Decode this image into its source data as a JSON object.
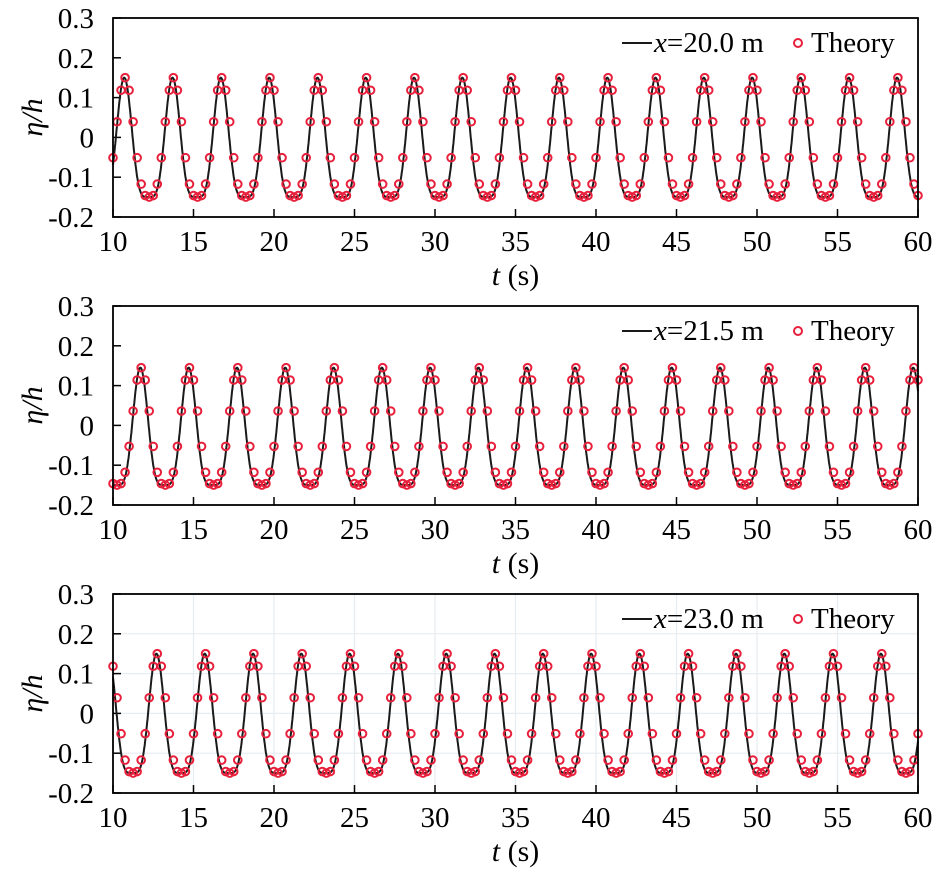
{
  "chart_data": [
    {
      "type": "line",
      "xlabel_italic": "t",
      "xlabel_unit": " (s)",
      "ylabel": "η/h",
      "xlim": [
        10,
        60
      ],
      "ylim": [
        -0.2,
        0.3
      ],
      "xticks": [
        10,
        15,
        20,
        25,
        30,
        35,
        40,
        45,
        50,
        55,
        60
      ],
      "yticks": [
        -0.2,
        -0.1,
        0,
        0.1,
        0.2,
        0.3
      ],
      "ytick_labels": [
        "-0.2",
        "-0.1",
        "0",
        "0.1",
        "0.2",
        "0.3"
      ],
      "grid": false,
      "legend_position": "top-right",
      "series": [
        {
          "name": "x=20.0 m",
          "legend_var": "x",
          "legend_rest": "=20.0 m",
          "style": "line",
          "color": "#1a1a1a",
          "period": 3.0,
          "first_crest_t": 10.7,
          "crest": 0.15,
          "trough": -0.15
        },
        {
          "name": "Theory",
          "style": "circles",
          "color": "#e8203c",
          "period": 3.0,
          "first_crest_t": 10.75,
          "crest": 0.15,
          "trough": -0.15,
          "sample_dt": 0.25
        }
      ]
    },
    {
      "type": "line",
      "xlabel_italic": "t",
      "xlabel_unit": " (s)",
      "ylabel": "η/h",
      "xlim": [
        10,
        60
      ],
      "ylim": [
        -0.2,
        0.3
      ],
      "xticks": [
        10,
        15,
        20,
        25,
        30,
        35,
        40,
        45,
        50,
        55,
        60
      ],
      "yticks": [
        -0.2,
        -0.1,
        0,
        0.1,
        0.2,
        0.3
      ],
      "ytick_labels": [
        "-0.2",
        "-0.1",
        "0",
        "0.1",
        "0.2",
        "0.3"
      ],
      "grid": false,
      "legend_position": "top-right",
      "series": [
        {
          "name": "x=21.5 m",
          "legend_var": "x",
          "legend_rest": "=21.5 m",
          "style": "line",
          "color": "#1a1a1a",
          "period": 3.0,
          "first_crest_t": 11.7,
          "crest": 0.145,
          "trough": -0.15
        },
        {
          "name": "Theory",
          "style": "circles",
          "color": "#e8203c",
          "period": 3.0,
          "first_crest_t": 11.75,
          "crest": 0.145,
          "trough": -0.15,
          "sample_dt": 0.25
        }
      ]
    },
    {
      "type": "line",
      "xlabel_italic": "t",
      "xlabel_unit": " (s)",
      "ylabel": "η/h",
      "xlim": [
        10,
        60
      ],
      "ylim": [
        -0.2,
        0.3
      ],
      "xticks": [
        10,
        15,
        20,
        25,
        30,
        35,
        40,
        45,
        50,
        55,
        60
      ],
      "yticks": [
        -0.2,
        -0.1,
        0,
        0.1,
        0.2,
        0.3
      ],
      "ytick_labels": [
        "-0.2",
        "-0.1",
        "0",
        "0.1",
        "0.2",
        "0.3"
      ],
      "grid": true,
      "legend_position": "top-right",
      "series": [
        {
          "name": "x=23.0 m",
          "legend_var": "x",
          "legend_rest": "=23.0 m",
          "style": "line",
          "color": "#1a1a1a",
          "period": 3.0,
          "first_crest_t": 12.7,
          "crest": 0.15,
          "trough": -0.15
        },
        {
          "name": "Theory",
          "style": "circles",
          "color": "#e8203c",
          "period": 3.0,
          "first_crest_t": 12.75,
          "crest": 0.15,
          "trough": -0.15,
          "sample_dt": 0.25
        }
      ]
    }
  ]
}
